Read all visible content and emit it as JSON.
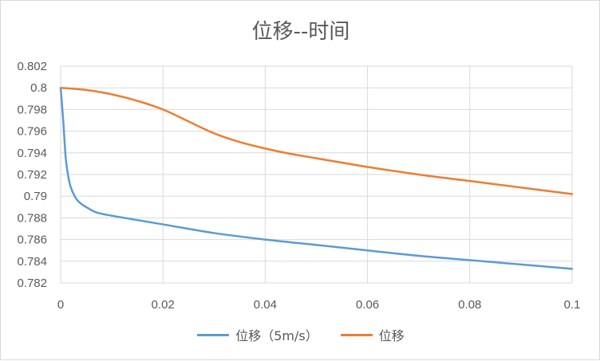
{
  "chart_data": {
    "type": "line",
    "title": "位移--时间",
    "xlabel": "",
    "ylabel": "",
    "xlim": [
      0,
      0.1
    ],
    "ylim": [
      0.782,
      0.802
    ],
    "x_ticks": [
      "0",
      "0.02",
      "0.04",
      "0.06",
      "0.08",
      "0.1"
    ],
    "y_ticks": [
      "0.782",
      "0.784",
      "0.786",
      "0.788",
      "0.79",
      "0.792",
      "0.794",
      "0.796",
      "0.798",
      "0.8",
      "0.802"
    ],
    "grid": true,
    "legend_position": "bottom",
    "series": [
      {
        "name": "位移（5m/s）",
        "color": "#5B9BD5",
        "x": [
          0,
          0.0005,
          0.001,
          0.0015,
          0.002,
          0.003,
          0.004,
          0.005,
          0.007,
          0.01,
          0.015,
          0.02,
          0.03,
          0.04,
          0.05,
          0.06,
          0.07,
          0.08,
          0.09,
          0.1
        ],
        "y": [
          0.8,
          0.797,
          0.7935,
          0.7918,
          0.7908,
          0.7898,
          0.7893,
          0.789,
          0.7885,
          0.7882,
          0.7878,
          0.7874,
          0.7866,
          0.786,
          0.7855,
          0.785,
          0.7845,
          0.7841,
          0.7837,
          0.7833
        ]
      },
      {
        "name": "位移",
        "color": "#ED7D31",
        "x": [
          0,
          0.005,
          0.01,
          0.015,
          0.02,
          0.025,
          0.03,
          0.035,
          0.04,
          0.045,
          0.05,
          0.06,
          0.07,
          0.08,
          0.09,
          0.1
        ],
        "y": [
          0.8,
          0.7998,
          0.7994,
          0.7988,
          0.798,
          0.7969,
          0.7958,
          0.795,
          0.7944,
          0.7939,
          0.7935,
          0.7927,
          0.792,
          0.7914,
          0.7908,
          0.7902
        ]
      }
    ]
  }
}
